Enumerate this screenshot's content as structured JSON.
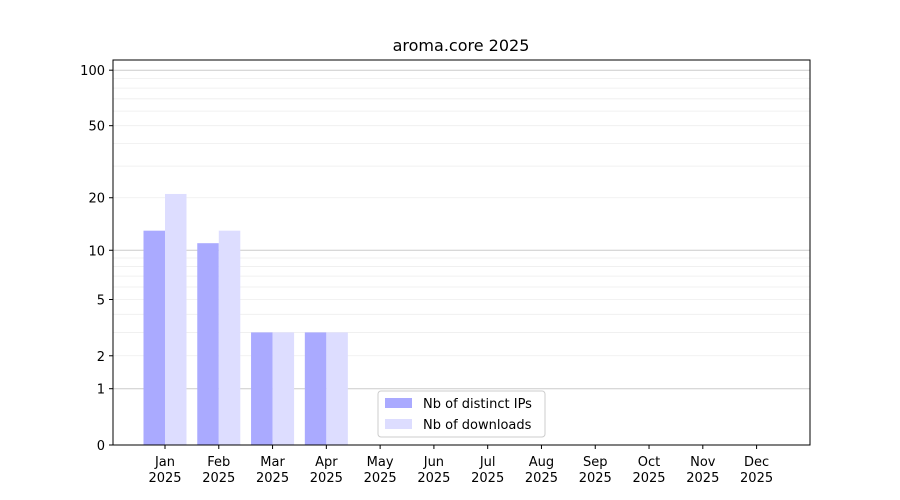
{
  "chart_data": {
    "type": "bar",
    "title": "aroma.core 2025",
    "categories": [
      "Jan 2025",
      "Feb 2025",
      "Mar 2025",
      "Apr 2025",
      "May 2025",
      "Jun 2025",
      "Jul 2025",
      "Aug 2025",
      "Sep 2025",
      "Oct 2025",
      "Nov 2025",
      "Dec 2025"
    ],
    "series": [
      {
        "name": "Nb of distinct IPs",
        "color": "#aaaaff",
        "values": [
          13,
          11,
          3,
          3,
          0,
          0,
          0,
          0,
          0,
          0,
          0,
          0
        ]
      },
      {
        "name": "Nb of downloads",
        "color": "#ddddff",
        "values": [
          21,
          13,
          3,
          3,
          0,
          0,
          0,
          0,
          0,
          0,
          0,
          0
        ]
      }
    ],
    "yscale": "log1p",
    "ylim": [
      0,
      113.5
    ],
    "yticks": [
      0,
      1,
      2,
      5,
      10,
      20,
      50,
      100
    ],
    "grid_major": [
      1,
      10,
      100
    ],
    "grid_minor": [
      2,
      3,
      4,
      5,
      6,
      7,
      8,
      9,
      20,
      30,
      40,
      50,
      60,
      70,
      80,
      90
    ],
    "legend": "lower center"
  }
}
